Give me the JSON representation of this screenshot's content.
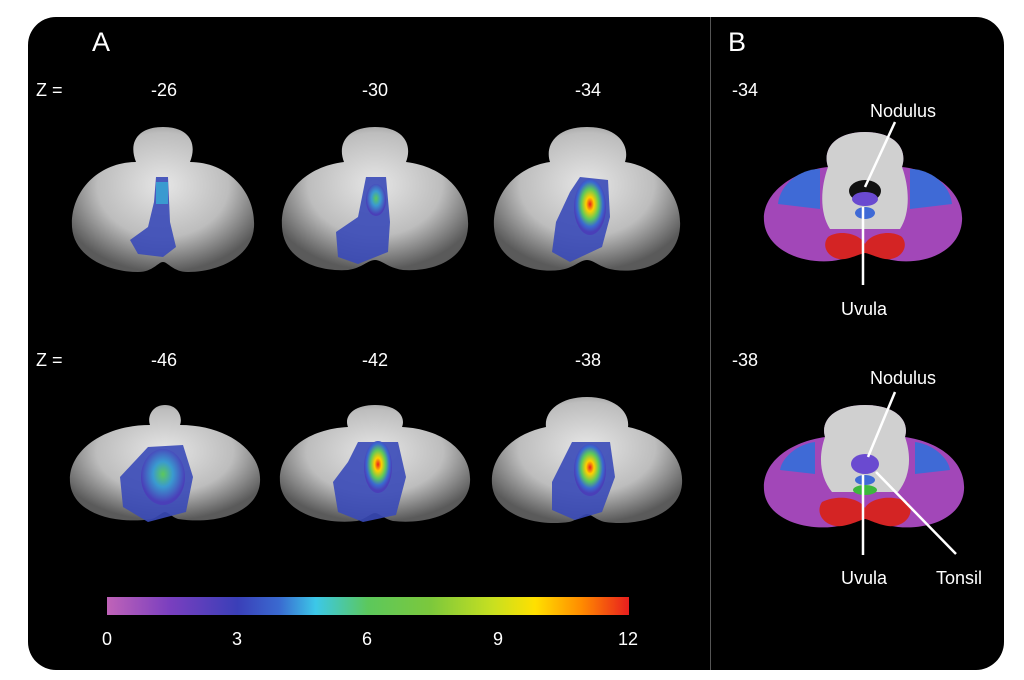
{
  "figure": {
    "panel_a": {
      "letter": "A",
      "z_prefix": "Z =",
      "top_row": [
        "-26",
        "-30",
        "-34"
      ],
      "bottom_row": [
        "-46",
        "-42",
        "-38"
      ]
    },
    "panel_b": {
      "letter": "B",
      "slices": [
        "-34",
        "-38"
      ],
      "annotations_top": [
        "Nodulus",
        "Uvula"
      ],
      "annotations_bottom": [
        "Nodulus",
        "Uvula",
        "Tonsil"
      ]
    },
    "colorbar": {
      "ticks": [
        "0",
        "3",
        "6",
        "9",
        "12"
      ],
      "min": 0,
      "max": 12,
      "colors": [
        "#c063b8",
        "#7a3fbf",
        "#3a3fb8",
        "#3a6ad0",
        "#3cc8e8",
        "#5cc85c",
        "#7cc83c",
        "#c8e020",
        "#ffe000",
        "#ff8a00",
        "#e81e1e"
      ]
    },
    "atlas_colors": {
      "purple": "#a247b8",
      "blue": "#3f6ad6",
      "red": "#d42424",
      "green": "#3cb83c",
      "nodulus": "#6a4ad0"
    }
  }
}
